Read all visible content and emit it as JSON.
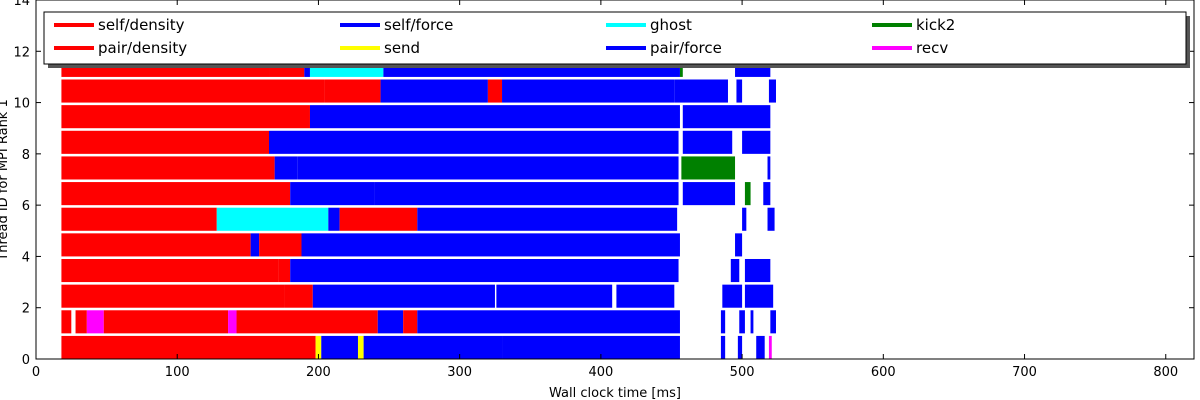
{
  "chart_data": {
    "type": "bar",
    "orientation": "horizontal-timeline",
    "title": "",
    "xlabel": "Wall clock time [ms]",
    "ylabel": "Thread ID for MPI Rank 1",
    "xlim": [
      0,
      820
    ],
    "ylim": [
      0,
      14
    ],
    "xticks": [
      0,
      100,
      200,
      300,
      400,
      500,
      600,
      700,
      800
    ],
    "yticks": [
      0,
      2,
      4,
      6,
      8,
      10,
      12,
      14
    ],
    "grid": false,
    "legend": {
      "placement": "top-inside",
      "columns": 5,
      "entries": [
        "self/density",
        "pair/density",
        "self/force",
        "send",
        "ghost",
        "pair/force",
        "kick2",
        "recv"
      ]
    },
    "series": [
      {
        "name": "self/density",
        "color": "#ff0000"
      },
      {
        "name": "pair/density",
        "color": "#ff0000"
      },
      {
        "name": "self/force",
        "color": "#0000ff"
      },
      {
        "name": "send",
        "color": "#ffff00"
      },
      {
        "name": "ghost",
        "color": "#00ffff"
      },
      {
        "name": "pair/force",
        "color": "#0000ff"
      },
      {
        "name": "kick2",
        "color": "#008000"
      },
      {
        "name": "recv",
        "color": "#ff00ff"
      }
    ],
    "threads": [
      {
        "thread": 0,
        "tasks": [
          {
            "start": 18,
            "end": 198,
            "type": "pair/density"
          },
          {
            "start": 198,
            "end": 202,
            "type": "send"
          },
          {
            "start": 202,
            "end": 228,
            "type": "pair/force"
          },
          {
            "start": 228,
            "end": 232,
            "type": "send"
          },
          {
            "start": 232,
            "end": 330,
            "type": "pair/force"
          },
          {
            "start": 330,
            "end": 456,
            "type": "pair/force"
          },
          {
            "start": 485,
            "end": 488,
            "type": "pair/force"
          },
          {
            "start": 497,
            "end": 500,
            "type": "pair/force"
          },
          {
            "start": 510,
            "end": 516,
            "type": "pair/force"
          },
          {
            "start": 519,
            "end": 521,
            "type": "recv"
          }
        ]
      },
      {
        "thread": 1,
        "tasks": [
          {
            "start": 18,
            "end": 25,
            "type": "pair/density"
          },
          {
            "start": 28,
            "end": 36,
            "type": "pair/density"
          },
          {
            "start": 36,
            "end": 48,
            "type": "recv"
          },
          {
            "start": 48,
            "end": 136,
            "type": "pair/density"
          },
          {
            "start": 136,
            "end": 142,
            "type": "recv"
          },
          {
            "start": 142,
            "end": 242,
            "type": "pair/density"
          },
          {
            "start": 242,
            "end": 260,
            "type": "pair/force"
          },
          {
            "start": 260,
            "end": 270,
            "type": "pair/density"
          },
          {
            "start": 270,
            "end": 456,
            "type": "pair/force"
          },
          {
            "start": 485,
            "end": 488,
            "type": "pair/force"
          },
          {
            "start": 498,
            "end": 502,
            "type": "pair/force"
          },
          {
            "start": 506,
            "end": 508,
            "type": "pair/force"
          },
          {
            "start": 520,
            "end": 524,
            "type": "pair/force"
          }
        ]
      },
      {
        "thread": 2,
        "tasks": [
          {
            "start": 18,
            "end": 176,
            "type": "pair/density"
          },
          {
            "start": 176,
            "end": 196,
            "type": "pair/density"
          },
          {
            "start": 196,
            "end": 325,
            "type": "pair/force"
          },
          {
            "start": 326,
            "end": 408,
            "type": "pair/force"
          },
          {
            "start": 411,
            "end": 452,
            "type": "pair/force"
          },
          {
            "start": 486,
            "end": 500,
            "type": "pair/force"
          },
          {
            "start": 502,
            "end": 522,
            "type": "pair/force"
          }
        ]
      },
      {
        "thread": 3,
        "tasks": [
          {
            "start": 18,
            "end": 172,
            "type": "pair/density"
          },
          {
            "start": 172,
            "end": 180,
            "type": "pair/density"
          },
          {
            "start": 180,
            "end": 455,
            "type": "pair/force"
          },
          {
            "start": 492,
            "end": 498,
            "type": "pair/force"
          },
          {
            "start": 502,
            "end": 520,
            "type": "pair/force"
          }
        ]
      },
      {
        "thread": 4,
        "tasks": [
          {
            "start": 18,
            "end": 152,
            "type": "pair/density"
          },
          {
            "start": 152,
            "end": 158,
            "type": "pair/force"
          },
          {
            "start": 158,
            "end": 188,
            "type": "pair/density"
          },
          {
            "start": 188,
            "end": 456,
            "type": "pair/force"
          },
          {
            "start": 495,
            "end": 500,
            "type": "pair/force"
          }
        ]
      },
      {
        "thread": 5,
        "tasks": [
          {
            "start": 18,
            "end": 128,
            "type": "pair/density"
          },
          {
            "start": 128,
            "end": 207,
            "type": "ghost"
          },
          {
            "start": 207,
            "end": 215,
            "type": "pair/force"
          },
          {
            "start": 215,
            "end": 270,
            "type": "pair/density"
          },
          {
            "start": 270,
            "end": 454,
            "type": "pair/force"
          },
          {
            "start": 500,
            "end": 503,
            "type": "pair/force"
          },
          {
            "start": 518,
            "end": 523,
            "type": "pair/force"
          }
        ]
      },
      {
        "thread": 6,
        "tasks": [
          {
            "start": 18,
            "end": 180,
            "type": "pair/density"
          },
          {
            "start": 180,
            "end": 240,
            "type": "pair/force"
          },
          {
            "start": 240,
            "end": 455,
            "type": "pair/force"
          },
          {
            "start": 458,
            "end": 495,
            "type": "pair/force"
          },
          {
            "start": 502,
            "end": 506,
            "type": "kick2"
          },
          {
            "start": 515,
            "end": 520,
            "type": "pair/force"
          }
        ]
      },
      {
        "thread": 7,
        "tasks": [
          {
            "start": 18,
            "end": 169,
            "type": "pair/density"
          },
          {
            "start": 169,
            "end": 185,
            "type": "pair/force"
          },
          {
            "start": 185,
            "end": 455,
            "type": "pair/force"
          },
          {
            "start": 457,
            "end": 495,
            "type": "kick2"
          },
          {
            "start": 518,
            "end": 520,
            "type": "pair/force"
          }
        ]
      },
      {
        "thread": 8,
        "tasks": [
          {
            "start": 18,
            "end": 165,
            "type": "pair/density"
          },
          {
            "start": 165,
            "end": 455,
            "type": "pair/force"
          },
          {
            "start": 458,
            "end": 493,
            "type": "pair/force"
          },
          {
            "start": 500,
            "end": 520,
            "type": "pair/force"
          }
        ]
      },
      {
        "thread": 9,
        "tasks": [
          {
            "start": 18,
            "end": 194,
            "type": "pair/density"
          },
          {
            "start": 194,
            "end": 456,
            "type": "pair/force"
          },
          {
            "start": 458,
            "end": 520,
            "type": "pair/force"
          }
        ]
      },
      {
        "thread": 10,
        "tasks": [
          {
            "start": 18,
            "end": 204,
            "type": "pair/density"
          },
          {
            "start": 204,
            "end": 244,
            "type": "pair/density"
          },
          {
            "start": 244,
            "end": 320,
            "type": "pair/force"
          },
          {
            "start": 320,
            "end": 330,
            "type": "pair/density"
          },
          {
            "start": 330,
            "end": 452,
            "type": "pair/force"
          },
          {
            "start": 452,
            "end": 490,
            "type": "pair/force"
          },
          {
            "start": 496,
            "end": 500,
            "type": "pair/force"
          },
          {
            "start": 519,
            "end": 524,
            "type": "pair/force"
          }
        ]
      },
      {
        "thread": 11,
        "tasks": [
          {
            "start": 18,
            "end": 165,
            "type": "pair/density"
          },
          {
            "start": 165,
            "end": 190,
            "type": "pair/density"
          },
          {
            "start": 190,
            "end": 194,
            "type": "pair/force"
          },
          {
            "start": 194,
            "end": 246,
            "type": "ghost"
          },
          {
            "start": 246,
            "end": 456,
            "type": "pair/force"
          },
          {
            "start": 456,
            "end": 458,
            "type": "kick2"
          },
          {
            "start": 495,
            "end": 520,
            "type": "pair/force"
          }
        ]
      }
    ]
  }
}
